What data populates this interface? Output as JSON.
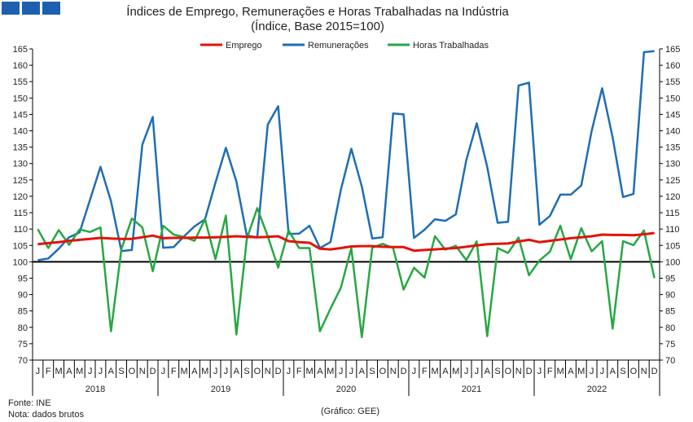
{
  "chart_data": {
    "type": "line",
    "title": "Índices de Emprego, Remunerações e Horas Trabalhadas na Indústria",
    "subtitle": "(Índice, Base 2015=100)",
    "ylim": [
      70,
      165
    ],
    "yticks": [
      70,
      75,
      80,
      85,
      90,
      95,
      100,
      105,
      110,
      115,
      120,
      125,
      130,
      135,
      140,
      145,
      150,
      155,
      160,
      165
    ],
    "reference_line": 100,
    "grid": false,
    "legend_position": "top",
    "years": [
      "2018",
      "2019",
      "2020",
      "2021",
      "2022"
    ],
    "month_labels": [
      "J",
      "F",
      "M",
      "A",
      "M",
      "J",
      "J",
      "A",
      "S",
      "O",
      "N",
      "D"
    ],
    "series": [
      {
        "name": "Emprego",
        "color": "#e3120b",
        "values": [
          105.4,
          105.7,
          106.0,
          106.4,
          106.7,
          107.0,
          107.3,
          107.1,
          107.0,
          107.0,
          107.5,
          108.0,
          107.2,
          107.3,
          107.3,
          107.4,
          107.4,
          107.5,
          107.6,
          107.8,
          107.6,
          107.5,
          107.6,
          107.8,
          106.3,
          106.0,
          105.8,
          104.0,
          103.8,
          104.2,
          104.7,
          104.8,
          104.8,
          104.6,
          104.5,
          104.5,
          103.4,
          103.6,
          103.8,
          104.0,
          104.2,
          104.6,
          105.0,
          105.4,
          105.5,
          105.6,
          106.2,
          106.7,
          106.0,
          106.4,
          106.8,
          107.2,
          107.5,
          107.8,
          108.3,
          108.2,
          108.2,
          108.1,
          108.4,
          108.8
        ]
      },
      {
        "name": "Remunerações",
        "color": "#1f6db5",
        "values": [
          100.5,
          101.0,
          104.0,
          107.5,
          109.0,
          119.0,
          129.0,
          118.5,
          103.3,
          103.6,
          135.8,
          144.2,
          104.3,
          104.5,
          107.8,
          110.8,
          113.0,
          124.2,
          134.8,
          124.5,
          108.0,
          107.5,
          141.9,
          147.5,
          108.5,
          108.6,
          111.0,
          104.2,
          106.0,
          122.0,
          134.5,
          123.0,
          107.1,
          107.5,
          145.3,
          145.0,
          107.3,
          109.8,
          113.0,
          112.5,
          114.5,
          131.0,
          142.3,
          129.0,
          111.9,
          112.2,
          153.8,
          154.7,
          111.3,
          114.0,
          120.5,
          120.5,
          123.3,
          140.0,
          153.0,
          138.0,
          119.8,
          120.7,
          164.0,
          164.3
        ]
      },
      {
        "name": "Horas Trabalhadas",
        "color": "#27a743",
        "values": [
          110.0,
          104.2,
          109.7,
          105.2,
          109.9,
          109.1,
          110.5,
          78.8,
          103.9,
          113.2,
          110.5,
          97.1,
          111.0,
          108.3,
          107.6,
          106.4,
          113.0,
          100.8,
          114.1,
          77.8,
          107.0,
          116.4,
          107.8,
          98.2,
          109.6,
          104.2,
          104.2,
          78.8,
          85.7,
          92.1,
          104.2,
          77.0,
          104.3,
          105.5,
          104.2,
          91.5,
          98.2,
          95.2,
          107.8,
          103.7,
          104.9,
          100.5,
          106.2,
          77.3,
          104.2,
          102.7,
          107.4,
          95.9,
          100.4,
          103.1,
          111.0,
          100.8,
          110.3,
          103.2,
          106.3,
          79.6,
          106.3,
          105.1,
          109.6,
          95.0
        ]
      }
    ]
  },
  "header_blocks": [
    "#1f5fb0",
    "#1f5fb0",
    "#1f5fb0"
  ],
  "footer": {
    "source": "Fonte: INE",
    "note": "Nota: dados brutos",
    "credit": "(Gráfico: GEE)"
  }
}
